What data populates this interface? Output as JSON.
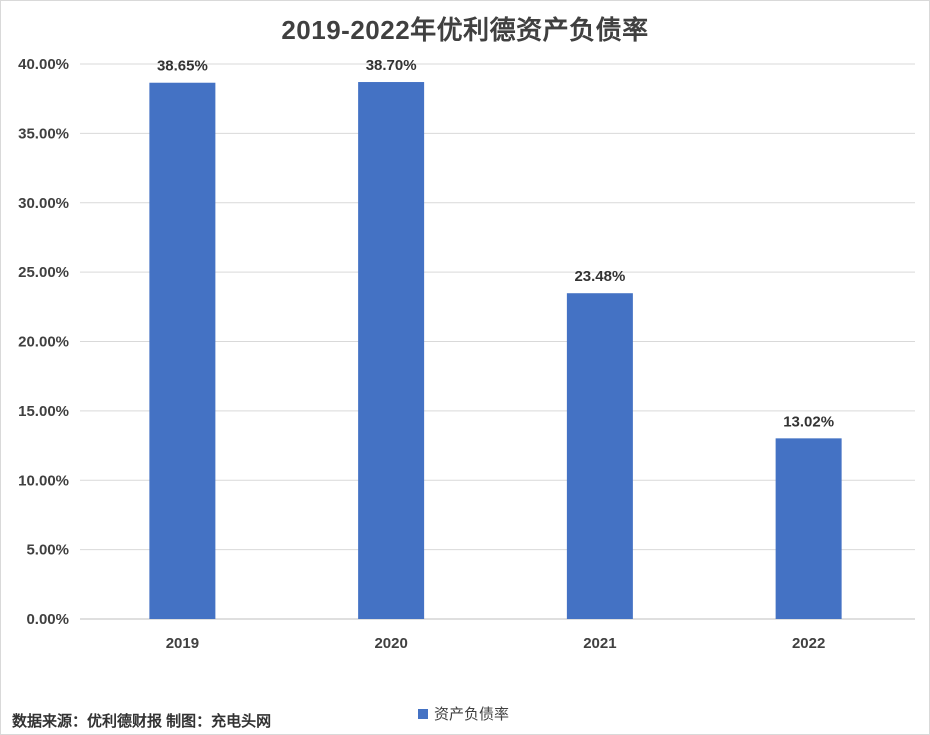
{
  "chart_data": {
    "type": "bar",
    "title": "2019-2022年优利德资产负债率",
    "categories": [
      "2019",
      "2020",
      "2021",
      "2022"
    ],
    "series": [
      {
        "name": "资产负债率",
        "values": [
          38.65,
          38.7,
          23.48,
          13.02
        ]
      }
    ],
    "data_labels": [
      "38.65%",
      "38.70%",
      "23.48%",
      "13.02%"
    ],
    "yticks": [
      "0.00%",
      "5.00%",
      "10.00%",
      "15.00%",
      "20.00%",
      "25.00%",
      "30.00%",
      "35.00%",
      "40.00%"
    ],
    "ylim": [
      0,
      40
    ],
    "grid": true,
    "legend_position": "bottom",
    "bar_color": "#4472C4",
    "xlabel": "",
    "ylabel": ""
  },
  "source_note": "数据来源：优利德财报  制图：充电头网"
}
